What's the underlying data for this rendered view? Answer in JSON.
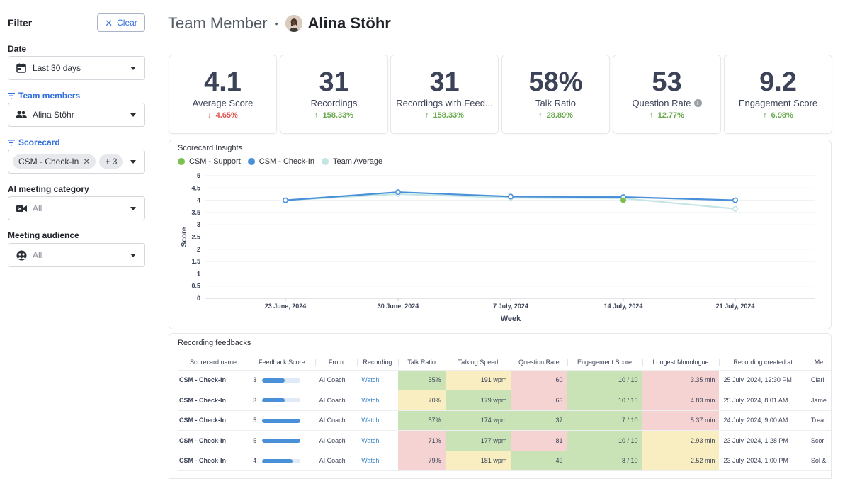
{
  "sidebar": {
    "title": "Filter",
    "clear_label": "Clear",
    "date": {
      "label": "Date",
      "value": "Last 30 days"
    },
    "team_members": {
      "label": "Team members",
      "value": "Alina Stöhr"
    },
    "scorecard": {
      "label": "Scorecard",
      "chip": "CSM - Check-In",
      "more": "+ 3"
    },
    "ai_category": {
      "label": "AI meeting category",
      "value": "All"
    },
    "audience": {
      "label": "Meeting audience",
      "value": "All"
    }
  },
  "header": {
    "title": "Team Member",
    "separator": "•",
    "name": "Alina Stöhr"
  },
  "kpis": [
    {
      "value": "4.1",
      "label": "Average Score",
      "change": "4.65%",
      "direction": "down"
    },
    {
      "value": "31",
      "label": "Recordings",
      "change": "158.33%",
      "direction": "up"
    },
    {
      "value": "31",
      "label": "Recordings with Feed...",
      "change": "158.33%",
      "direction": "up"
    },
    {
      "value": "58%",
      "label": "Talk Ratio",
      "change": "28.89%",
      "direction": "up"
    },
    {
      "value": "53",
      "label": "Question Rate",
      "change": "12.77%",
      "direction": "up"
    },
    {
      "value": "9.2",
      "label": "Engagement Score",
      "change": "6.98%",
      "direction": "up"
    }
  ],
  "chart_data": {
    "type": "line",
    "title": "Scorecard Insights",
    "xlabel": "Week",
    "ylabel": "Score",
    "categories": [
      "23 June, 2024",
      "30 June, 2024",
      "7 July, 2024",
      "14 July, 2024",
      "21 July, 2024"
    ],
    "ylim": [
      0,
      5
    ],
    "yticks": [
      "0",
      "0.5",
      "1",
      "1.5",
      "2",
      "2.5",
      "3",
      "3.5",
      "4",
      "4.5",
      "5"
    ],
    "grid": true,
    "legend_position": "top-left",
    "series": [
      {
        "name": "CSM - Support",
        "color": "#7cc04f",
        "values": [
          null,
          null,
          null,
          4.0,
          null
        ]
      },
      {
        "name": "CSM - Check-In",
        "color": "#4a90d9",
        "values": [
          4.0,
          4.33,
          4.15,
          4.13,
          4.0
        ]
      },
      {
        "name": "Team Average",
        "color": "#c3e6e4",
        "values": [
          4.0,
          4.25,
          4.1,
          4.08,
          3.65
        ]
      }
    ]
  },
  "table": {
    "title": "Recording feedbacks",
    "columns": [
      "Scorecard name",
      "Feedback Score",
      "From",
      "Recording",
      "Talk Ratio",
      "Talking Speed",
      "Question Rate",
      "Engagement Score",
      "Longest Monologue",
      "Recording created at",
      "Me"
    ],
    "rows": [
      {
        "name": "CSM - Check-In",
        "score": "3",
        "score_fraction": 0.6,
        "from": "AI Coach",
        "recording": "Watch",
        "talk": "55%",
        "talk_c": "g",
        "speed": "191 wpm",
        "speed_c": "y",
        "qrate": "60",
        "qrate_c": "r",
        "eng": "10 / 10",
        "eng_c": "g",
        "mono": "3.35 min",
        "mono_c": "r",
        "created": "25 July, 2024, 12:30 PM",
        "me": "Clarl"
      },
      {
        "name": "CSM - Check-In",
        "score": "3",
        "score_fraction": 0.6,
        "from": "AI Coach",
        "recording": "Watch",
        "talk": "70%",
        "talk_c": "y",
        "speed": "179 wpm",
        "speed_c": "g",
        "qrate": "63",
        "qrate_c": "r",
        "eng": "10 / 10",
        "eng_c": "g",
        "mono": "4.83 min",
        "mono_c": "r",
        "created": "25 July, 2024, 8:01 AM",
        "me": "Jame"
      },
      {
        "name": "CSM - Check-In",
        "score": "5",
        "score_fraction": 1.0,
        "from": "AI Coach",
        "recording": "Watch",
        "talk": "57%",
        "talk_c": "g",
        "speed": "174 wpm",
        "speed_c": "g",
        "qrate": "37",
        "qrate_c": "g",
        "eng": "7 / 10",
        "eng_c": "g",
        "mono": "5.37 min",
        "mono_c": "r",
        "created": "24 July, 2024, 9:00 AM",
        "me": "Trea"
      },
      {
        "name": "CSM - Check-In",
        "score": "5",
        "score_fraction": 1.0,
        "from": "AI Coach",
        "recording": "Watch",
        "talk": "71%",
        "talk_c": "r",
        "speed": "177 wpm",
        "speed_c": "g",
        "qrate": "81",
        "qrate_c": "r",
        "eng": "10 / 10",
        "eng_c": "g",
        "mono": "2.93 min",
        "mono_c": "y",
        "created": "23 July, 2024, 1:28 PM",
        "me": "Scor"
      },
      {
        "name": "CSM - Check-In",
        "score": "4",
        "score_fraction": 0.8,
        "from": "AI Coach",
        "recording": "Watch",
        "talk": "79%",
        "talk_c": "r",
        "speed": "181 wpm",
        "speed_c": "y",
        "qrate": "49",
        "qrate_c": "g",
        "eng": "8 / 10",
        "eng_c": "g",
        "mono": "2.52 min",
        "mono_c": "y",
        "created": "23 July, 2024, 1:00 PM",
        "me": "Sol &"
      }
    ]
  }
}
